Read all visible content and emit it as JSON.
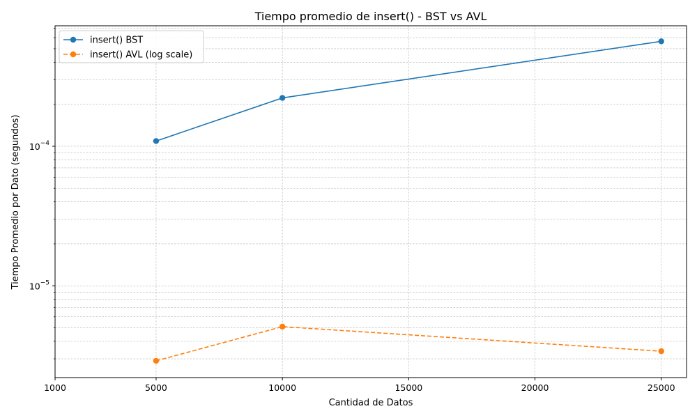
{
  "chart_data": {
    "type": "line",
    "title": "Tiempo promedio de insert() - BST vs AVL",
    "xlabel": "Cantidad de Datos",
    "ylabel": "Tiempo Promedio por Dato (segundos)",
    "x_ticks": [
      1000,
      5000,
      10000,
      15000,
      20000,
      25000
    ],
    "x_tick_labels": [
      "1000",
      "5000",
      "10000",
      "15000",
      "20000",
      "25000"
    ],
    "xlim": [
      1000,
      26000
    ],
    "y_scale": "log",
    "ylim": [
      2.2e-06,
      0.00073
    ],
    "y_major_ticks": [
      {
        "value": 1e-05,
        "base": "10",
        "exp": "−5"
      },
      {
        "value": 0.0001,
        "base": "10",
        "exp": "−4"
      }
    ],
    "grid": true,
    "legend_position": "top-left",
    "series": [
      {
        "name": "insert() BST",
        "color": "#1f77b4",
        "line_style": "solid",
        "marker": "circle",
        "x": [
          5000,
          10000,
          25000
        ],
        "y": [
          0.000109,
          0.000222,
          0.000565
        ]
      },
      {
        "name": "insert() AVL (log scale)",
        "color": "#ff7f0e",
        "line_style": "dashed",
        "marker": "circle",
        "x": [
          5000,
          10000,
          25000
        ],
        "y": [
          2.9e-06,
          5.1e-06,
          3.4e-06
        ]
      }
    ]
  }
}
